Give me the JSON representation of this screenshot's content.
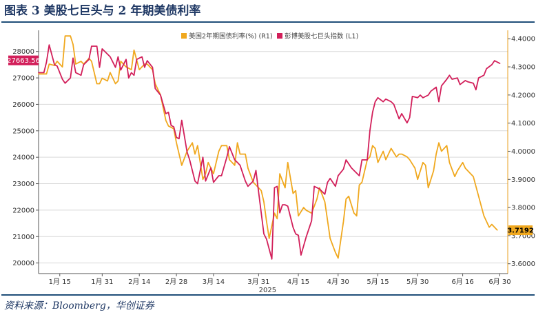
{
  "header": {
    "title": "图表 3   美股七巨头与 2 年期美债利率"
  },
  "footer": {
    "source": "资料来源：Bloomberg，华创证券"
  },
  "colors": {
    "yield": "#F0A81E",
    "index": "#D21F5A",
    "rule": "#1F4E79",
    "last_index_box": "#D21F5A",
    "last_yield_box": "#F0A81E"
  },
  "chart_data": {
    "type": "line",
    "x_axis": {
      "year": "2025",
      "ticks": [
        {
          "label": "1月 15",
          "t": 8
        },
        {
          "label": "1月 31",
          "t": 24
        },
        {
          "label": "2月 14",
          "t": 38
        },
        {
          "label": "2月 28",
          "t": 52
        },
        {
          "label": "3月 14",
          "t": 66
        },
        {
          "label": "3月 31",
          "t": 83
        },
        {
          "label": "4月 15",
          "t": 98
        },
        {
          "label": "4月 30",
          "t": 113
        },
        {
          "label": "5月 15",
          "t": 128
        },
        {
          "label": "5月 30",
          "t": 143
        },
        {
          "label": "6月 16",
          "t": 160
        },
        {
          "label": "6月 30",
          "t": 174
        }
      ],
      "range_days": [
        0,
        177
      ]
    },
    "y_left": {
      "ticks": [
        "20000",
        "21000",
        "22000",
        "23000",
        "24000",
        "25000",
        "26000",
        "27000",
        "28000"
      ],
      "range": [
        19600,
        28800
      ]
    },
    "y_right": {
      "ticks": [
        "3.6000",
        "3.7000",
        "3.8000",
        "3.9000",
        "4.0000",
        "4.1000",
        "4.2000",
        "4.3000",
        "4.4000"
      ],
      "range": [
        3.565,
        4.43
      ]
    },
    "legend": {
      "position": "top",
      "items": [
        "美国2年期国债利率(%) (R1)",
        "彭博美股七巨头指数 (L1)"
      ]
    },
    "last_values": {
      "index": "27663.56",
      "yield": "3.7192"
    },
    "series": [
      {
        "name": "美国2年期国债利率(%) (R1)",
        "axis": "right",
        "points": [
          [
            0,
            4.275
          ],
          [
            3,
            4.275
          ],
          [
            4,
            4.31
          ],
          [
            6,
            4.305
          ],
          [
            7,
            4.32
          ],
          [
            9,
            4.3
          ],
          [
            10,
            4.41
          ],
          [
            12,
            4.41
          ],
          [
            13,
            4.38
          ],
          [
            14,
            4.31
          ],
          [
            16,
            4.32
          ],
          [
            17,
            4.31
          ],
          [
            19,
            4.33
          ],
          [
            20,
            4.32
          ],
          [
            22,
            4.24
          ],
          [
            23,
            4.24
          ],
          [
            24,
            4.26
          ],
          [
            26,
            4.25
          ],
          [
            27,
            4.28
          ],
          [
            29,
            4.24
          ],
          [
            30,
            4.25
          ],
          [
            31,
            4.32
          ],
          [
            33,
            4.3
          ],
          [
            35,
            4.29
          ],
          [
            36,
            4.36
          ],
          [
            38,
            4.29
          ],
          [
            40,
            4.31
          ],
          [
            41,
            4.31
          ],
          [
            43,
            4.29
          ],
          [
            44,
            4.24
          ],
          [
            46,
            4.2
          ],
          [
            48,
            4.11
          ],
          [
            49,
            4.09
          ],
          [
            51,
            4.08
          ],
          [
            52,
            4.03
          ],
          [
            54,
            3.95
          ],
          [
            56,
            4.0
          ],
          [
            58,
            4.03
          ],
          [
            59,
            3.99
          ],
          [
            60,
            4.02
          ],
          [
            62,
            3.9
          ],
          [
            63,
            3.92
          ],
          [
            64,
            3.96
          ],
          [
            66,
            3.92
          ],
          [
            68,
            4.0
          ],
          [
            69,
            4.02
          ],
          [
            71,
            4.02
          ],
          [
            72,
            3.97
          ],
          [
            73,
            3.96
          ],
          [
            74,
            3.95
          ],
          [
            75,
            4.03
          ],
          [
            76,
            3.99
          ],
          [
            78,
            3.99
          ],
          [
            79,
            3.94
          ],
          [
            81,
            3.89
          ],
          [
            82,
            3.88
          ],
          [
            84,
            3.86
          ],
          [
            85,
            3.82
          ],
          [
            86,
            3.75
          ],
          [
            87,
            3.69
          ],
          [
            89,
            3.78
          ],
          [
            90,
            3.76
          ],
          [
            91,
            3.92
          ],
          [
            93,
            3.87
          ],
          [
            94,
            3.96
          ],
          [
            96,
            3.85
          ],
          [
            97,
            3.86
          ],
          [
            98,
            3.77
          ],
          [
            100,
            3.8
          ],
          [
            101,
            3.79
          ],
          [
            103,
            3.78
          ],
          [
            105,
            3.83
          ],
          [
            106,
            3.87
          ],
          [
            108,
            3.82
          ],
          [
            110,
            3.69
          ],
          [
            112,
            3.64
          ],
          [
            113,
            3.62
          ],
          [
            115,
            3.75
          ],
          [
            116,
            3.83
          ],
          [
            117,
            3.84
          ],
          [
            119,
            3.78
          ],
          [
            120,
            3.77
          ],
          [
            121,
            3.88
          ],
          [
            122,
            3.89
          ],
          [
            124,
            3.97
          ],
          [
            125,
            3.98
          ],
          [
            126,
            4.02
          ],
          [
            127,
            4.01
          ],
          [
            128,
            3.96
          ],
          [
            130,
            4.0
          ],
          [
            131,
            3.97
          ],
          [
            133,
            4.01
          ],
          [
            135,
            3.98
          ],
          [
            136,
            3.99
          ],
          [
            137,
            3.99
          ],
          [
            139,
            3.98
          ],
          [
            140,
            3.97
          ],
          [
            142,
            3.94
          ],
          [
            143,
            3.9
          ],
          [
            145,
            3.96
          ],
          [
            146,
            3.95
          ],
          [
            147,
            3.87
          ],
          [
            149,
            3.93
          ],
          [
            150,
            3.99
          ],
          [
            151,
            4.03
          ],
          [
            152,
            4.0
          ],
          [
            154,
            4.02
          ],
          [
            155,
            3.96
          ],
          [
            157,
            3.91
          ],
          [
            158,
            3.93
          ],
          [
            160,
            3.96
          ],
          [
            161,
            3.94
          ],
          [
            163,
            3.92
          ],
          [
            164,
            3.91
          ],
          [
            166,
            3.84
          ],
          [
            168,
            3.77
          ],
          [
            170,
            3.73
          ],
          [
            171,
            3.74
          ],
          [
            173,
            3.72
          ]
        ]
      },
      {
        "name": "彭博美股七巨头指数 (L1)",
        "axis": "left",
        "points": [
          [
            0,
            27200
          ],
          [
            2,
            27200
          ],
          [
            3,
            27600
          ],
          [
            4,
            28250
          ],
          [
            6,
            27500
          ],
          [
            7,
            27450
          ],
          [
            9,
            26950
          ],
          [
            10,
            26800
          ],
          [
            12,
            27000
          ],
          [
            13,
            27750
          ],
          [
            14,
            27200
          ],
          [
            16,
            27100
          ],
          [
            17,
            27500
          ],
          [
            19,
            27700
          ],
          [
            20,
            28200
          ],
          [
            22,
            28200
          ],
          [
            23,
            27400
          ],
          [
            24,
            28100
          ],
          [
            26,
            27900
          ],
          [
            27,
            27800
          ],
          [
            29,
            27400
          ],
          [
            30,
            27800
          ],
          [
            31,
            27300
          ],
          [
            33,
            27700
          ],
          [
            34,
            27000
          ],
          [
            35,
            27200
          ],
          [
            36,
            27100
          ],
          [
            37,
            27700
          ],
          [
            39,
            27800
          ],
          [
            40,
            27400
          ],
          [
            41,
            27650
          ],
          [
            43,
            27400
          ],
          [
            44,
            26600
          ],
          [
            46,
            26350
          ],
          [
            47,
            26000
          ],
          [
            48,
            25650
          ],
          [
            49,
            25700
          ],
          [
            50,
            25200
          ],
          [
            51,
            25150
          ],
          [
            52,
            24750
          ],
          [
            53,
            24700
          ],
          [
            54,
            25400
          ],
          [
            56,
            24200
          ],
          [
            57,
            23900
          ],
          [
            59,
            23100
          ],
          [
            60,
            23000
          ],
          [
            62,
            24000
          ],
          [
            63,
            23100
          ],
          [
            65,
            23600
          ],
          [
            66,
            23050
          ],
          [
            68,
            23300
          ],
          [
            69,
            23300
          ],
          [
            71,
            24000
          ],
          [
            72,
            24400
          ],
          [
            74,
            23900
          ],
          [
            75,
            23800
          ],
          [
            76,
            23700
          ],
          [
            78,
            23100
          ],
          [
            79,
            22900
          ],
          [
            81,
            23100
          ],
          [
            82,
            23500
          ],
          [
            83,
            22700
          ],
          [
            85,
            21100
          ],
          [
            86,
            20900
          ],
          [
            88,
            20150
          ],
          [
            89,
            22850
          ],
          [
            90,
            22900
          ],
          [
            91,
            21900
          ],
          [
            92,
            22200
          ],
          [
            93,
            22200
          ],
          [
            94,
            22150
          ],
          [
            96,
            21350
          ],
          [
            97,
            21100
          ],
          [
            98,
            21050
          ],
          [
            99,
            20300
          ],
          [
            101,
            21000
          ],
          [
            103,
            21600
          ],
          [
            104,
            22900
          ],
          [
            106,
            22800
          ],
          [
            108,
            22600
          ],
          [
            109,
            23050
          ],
          [
            110,
            23200
          ],
          [
            112,
            22900
          ],
          [
            113,
            23300
          ],
          [
            115,
            23550
          ],
          [
            116,
            23900
          ],
          [
            118,
            23600
          ],
          [
            119,
            23500
          ],
          [
            121,
            23300
          ],
          [
            122,
            23900
          ],
          [
            124,
            23900
          ],
          [
            125,
            25000
          ],
          [
            126,
            25700
          ],
          [
            127,
            26100
          ],
          [
            128,
            26250
          ],
          [
            130,
            26100
          ],
          [
            131,
            26200
          ],
          [
            133,
            26100
          ],
          [
            134,
            26000
          ],
          [
            136,
            25450
          ],
          [
            137,
            25650
          ],
          [
            139,
            25300
          ],
          [
            140,
            25500
          ],
          [
            141,
            26300
          ],
          [
            143,
            26250
          ],
          [
            144,
            26350
          ],
          [
            145,
            26250
          ],
          [
            147,
            26350
          ],
          [
            148,
            26500
          ],
          [
            150,
            26650
          ],
          [
            151,
            26100
          ],
          [
            152,
            26700
          ],
          [
            154,
            26950
          ],
          [
            155,
            27100
          ],
          [
            156,
            26950
          ],
          [
            158,
            27000
          ],
          [
            159,
            26750
          ],
          [
            161,
            26900
          ],
          [
            162,
            26850
          ],
          [
            164,
            26800
          ],
          [
            165,
            26550
          ],
          [
            166,
            27000
          ],
          [
            168,
            27100
          ],
          [
            169,
            27350
          ],
          [
            171,
            27500
          ],
          [
            172,
            27650
          ],
          [
            174,
            27550
          ]
        ]
      }
    ]
  }
}
